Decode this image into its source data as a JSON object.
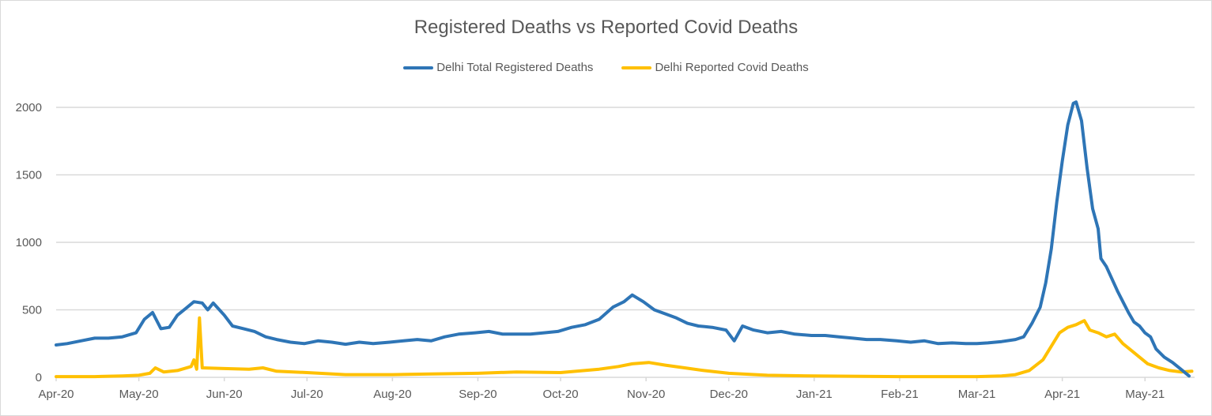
{
  "chart_data": {
    "type": "line",
    "title": "Registered Deaths vs Reported Covid Deaths",
    "xlabel": "",
    "ylabel": "",
    "ylim": [
      0,
      2050
    ],
    "yticks": [
      0,
      500,
      1000,
      1500,
      2000
    ],
    "xlim": [
      "2020-04-01",
      "2021-05-19"
    ],
    "xticks": [
      {
        "date": "2020-04-01",
        "label": "Apr-20"
      },
      {
        "date": "2020-05-01",
        "label": "May-20"
      },
      {
        "date": "2020-06-01",
        "label": "Jun-20"
      },
      {
        "date": "2020-07-01",
        "label": "Jul-20"
      },
      {
        "date": "2020-08-01",
        "label": "Aug-20"
      },
      {
        "date": "2020-09-01",
        "label": "Sep-20"
      },
      {
        "date": "2020-10-01",
        "label": "Oct-20"
      },
      {
        "date": "2020-11-01",
        "label": "Nov-20"
      },
      {
        "date": "2020-12-01",
        "label": "Dec-20"
      },
      {
        "date": "2021-01-01",
        "label": "Jan-21"
      },
      {
        "date": "2021-02-01",
        "label": "Feb-21"
      },
      {
        "date": "2021-03-01",
        "label": "Mar-21"
      },
      {
        "date": "2021-04-01",
        "label": "Apr-21"
      },
      {
        "date": "2021-05-01",
        "label": "May-21"
      }
    ],
    "grid": true,
    "legend_position": "top",
    "series": [
      {
        "name": "Delhi Total Registered Deaths",
        "color": "#2E75B6",
        "points": [
          [
            "2020-04-01",
            240
          ],
          [
            "2020-04-05",
            250
          ],
          [
            "2020-04-10",
            270
          ],
          [
            "2020-04-15",
            290
          ],
          [
            "2020-04-20",
            290
          ],
          [
            "2020-04-25",
            300
          ],
          [
            "2020-04-30",
            330
          ],
          [
            "2020-05-03",
            430
          ],
          [
            "2020-05-06",
            480
          ],
          [
            "2020-05-09",
            360
          ],
          [
            "2020-05-12",
            370
          ],
          [
            "2020-05-15",
            460
          ],
          [
            "2020-05-18",
            510
          ],
          [
            "2020-05-21",
            560
          ],
          [
            "2020-05-24",
            550
          ],
          [
            "2020-05-26",
            500
          ],
          [
            "2020-05-28",
            550
          ],
          [
            "2020-06-01",
            460
          ],
          [
            "2020-06-04",
            380
          ],
          [
            "2020-06-08",
            360
          ],
          [
            "2020-06-12",
            340
          ],
          [
            "2020-06-16",
            300
          ],
          [
            "2020-06-20",
            280
          ],
          [
            "2020-06-25",
            260
          ],
          [
            "2020-06-30",
            250
          ],
          [
            "2020-07-05",
            270
          ],
          [
            "2020-07-10",
            260
          ],
          [
            "2020-07-15",
            245
          ],
          [
            "2020-07-20",
            260
          ],
          [
            "2020-07-25",
            250
          ],
          [
            "2020-07-31",
            260
          ],
          [
            "2020-08-05",
            270
          ],
          [
            "2020-08-10",
            280
          ],
          [
            "2020-08-15",
            270
          ],
          [
            "2020-08-20",
            300
          ],
          [
            "2020-08-25",
            320
          ],
          [
            "2020-08-31",
            330
          ],
          [
            "2020-09-05",
            340
          ],
          [
            "2020-09-10",
            320
          ],
          [
            "2020-09-15",
            320
          ],
          [
            "2020-09-20",
            320
          ],
          [
            "2020-09-25",
            330
          ],
          [
            "2020-09-30",
            340
          ],
          [
            "2020-10-05",
            370
          ],
          [
            "2020-10-10",
            390
          ],
          [
            "2020-10-15",
            430
          ],
          [
            "2020-10-20",
            520
          ],
          [
            "2020-10-24",
            560
          ],
          [
            "2020-10-27",
            610
          ],
          [
            "2020-10-31",
            560
          ],
          [
            "2020-11-04",
            500
          ],
          [
            "2020-11-08",
            470
          ],
          [
            "2020-11-12",
            440
          ],
          [
            "2020-11-16",
            400
          ],
          [
            "2020-11-20",
            380
          ],
          [
            "2020-11-25",
            370
          ],
          [
            "2020-11-30",
            350
          ],
          [
            "2020-12-03",
            270
          ],
          [
            "2020-12-06",
            380
          ],
          [
            "2020-12-10",
            350
          ],
          [
            "2020-12-15",
            330
          ],
          [
            "2020-12-20",
            340
          ],
          [
            "2020-12-25",
            320
          ],
          [
            "2020-12-31",
            310
          ],
          [
            "2021-01-05",
            310
          ],
          [
            "2021-01-10",
            300
          ],
          [
            "2021-01-15",
            290
          ],
          [
            "2021-01-20",
            280
          ],
          [
            "2021-01-25",
            280
          ],
          [
            "2021-01-31",
            270
          ],
          [
            "2021-02-05",
            260
          ],
          [
            "2021-02-10",
            270
          ],
          [
            "2021-02-15",
            250
          ],
          [
            "2021-02-20",
            255
          ],
          [
            "2021-02-25",
            250
          ],
          [
            "2021-03-01",
            250
          ],
          [
            "2021-03-05",
            255
          ],
          [
            "2021-03-10",
            265
          ],
          [
            "2021-03-15",
            280
          ],
          [
            "2021-03-18",
            300
          ],
          [
            "2021-03-21",
            400
          ],
          [
            "2021-03-24",
            520
          ],
          [
            "2021-03-26",
            700
          ],
          [
            "2021-03-28",
            950
          ],
          [
            "2021-03-30",
            1300
          ],
          [
            "2021-04-01",
            1600
          ],
          [
            "2021-04-03",
            1870
          ],
          [
            "2021-04-05",
            2030
          ],
          [
            "2021-04-06",
            2040
          ],
          [
            "2021-04-08",
            1900
          ],
          [
            "2021-04-10",
            1550
          ],
          [
            "2021-04-12",
            1250
          ],
          [
            "2021-04-14",
            1100
          ],
          [
            "2021-04-15",
            880
          ],
          [
            "2021-04-17",
            820
          ],
          [
            "2021-04-19",
            730
          ],
          [
            "2021-04-21",
            640
          ],
          [
            "2021-04-23",
            560
          ],
          [
            "2021-04-25",
            480
          ],
          [
            "2021-04-27",
            410
          ],
          [
            "2021-04-29",
            380
          ],
          [
            "2021-05-01",
            330
          ],
          [
            "2021-05-03",
            300
          ],
          [
            "2021-05-05",
            210
          ],
          [
            "2021-05-08",
            150
          ],
          [
            "2021-05-11",
            110
          ],
          [
            "2021-05-14",
            60
          ],
          [
            "2021-05-17",
            10
          ]
        ]
      },
      {
        "name": "Delhi Reported Covid Deaths",
        "color": "#FFC000",
        "points": [
          [
            "2020-04-01",
            5
          ],
          [
            "2020-04-15",
            5
          ],
          [
            "2020-04-25",
            10
          ],
          [
            "2020-05-01",
            15
          ],
          [
            "2020-05-05",
            30
          ],
          [
            "2020-05-07",
            70
          ],
          [
            "2020-05-10",
            40
          ],
          [
            "2020-05-15",
            50
          ],
          [
            "2020-05-20",
            80
          ],
          [
            "2020-05-21",
            130
          ],
          [
            "2020-05-22",
            60
          ],
          [
            "2020-05-23",
            440
          ],
          [
            "2020-05-24",
            70
          ],
          [
            "2020-06-01",
            65
          ],
          [
            "2020-06-10",
            60
          ],
          [
            "2020-06-15",
            70
          ],
          [
            "2020-06-20",
            45
          ],
          [
            "2020-07-01",
            35
          ],
          [
            "2020-07-15",
            20
          ],
          [
            "2020-08-01",
            20
          ],
          [
            "2020-08-15",
            25
          ],
          [
            "2020-09-01",
            30
          ],
          [
            "2020-09-15",
            40
          ],
          [
            "2020-10-01",
            35
          ],
          [
            "2020-10-15",
            60
          ],
          [
            "2020-10-22",
            80
          ],
          [
            "2020-10-27",
            100
          ],
          [
            "2020-11-02",
            110
          ],
          [
            "2020-11-08",
            90
          ],
          [
            "2020-11-15",
            70
          ],
          [
            "2020-11-22",
            50
          ],
          [
            "2020-12-01",
            30
          ],
          [
            "2020-12-15",
            15
          ],
          [
            "2021-01-01",
            10
          ],
          [
            "2021-02-01",
            5
          ],
          [
            "2021-03-01",
            5
          ],
          [
            "2021-03-10",
            10
          ],
          [
            "2021-03-15",
            20
          ],
          [
            "2021-03-20",
            50
          ],
          [
            "2021-03-25",
            130
          ],
          [
            "2021-03-28",
            230
          ],
          [
            "2021-03-31",
            330
          ],
          [
            "2021-04-03",
            370
          ],
          [
            "2021-04-06",
            390
          ],
          [
            "2021-04-09",
            420
          ],
          [
            "2021-04-11",
            350
          ],
          [
            "2021-04-14",
            330
          ],
          [
            "2021-04-17",
            300
          ],
          [
            "2021-04-20",
            320
          ],
          [
            "2021-04-23",
            250
          ],
          [
            "2021-04-26",
            200
          ],
          [
            "2021-04-29",
            150
          ],
          [
            "2021-05-02",
            100
          ],
          [
            "2021-05-06",
            70
          ],
          [
            "2021-05-10",
            50
          ],
          [
            "2021-05-14",
            40
          ],
          [
            "2021-05-18",
            45
          ]
        ]
      }
    ]
  }
}
